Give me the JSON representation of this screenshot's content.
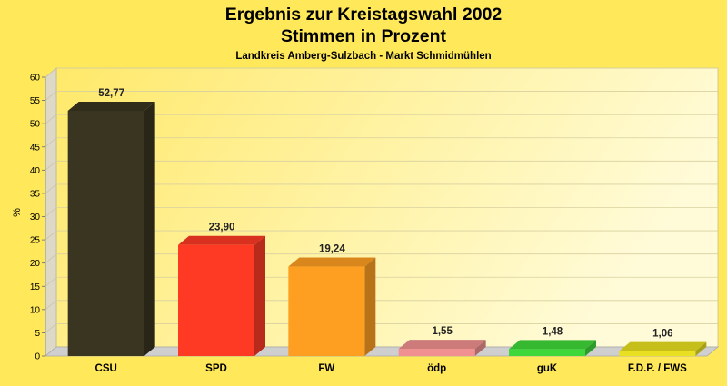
{
  "chart_data": {
    "type": "bar",
    "title": "Ergebnis zur Kreistagswahl 2002",
    "title_line2": "Stimmen in Prozent",
    "subtitle": "Landkreis Amberg-Sulzbach - Markt Schmidmühlen",
    "xlabel": "",
    "ylabel": "%",
    "ylim": [
      0,
      60
    ],
    "yticks": [
      0,
      5,
      10,
      15,
      20,
      25,
      30,
      35,
      40,
      45,
      50,
      55,
      60
    ],
    "grid": true,
    "legend": "none",
    "categories": [
      "CSU",
      "SPD",
      "FW",
      "ödp",
      "guK",
      "F.D.P. / FWS"
    ],
    "values": [
      52.77,
      23.9,
      19.24,
      1.55,
      1.48,
      1.06
    ],
    "value_labels": [
      "52,77",
      "23,90",
      "19,24",
      "1,55",
      "1,48",
      "1,06"
    ],
    "colors": [
      "#3a3520",
      "#ff3a24",
      "#ff9f22",
      "#f09090",
      "#3fd83a",
      "#e8e020"
    ],
    "background_color": "#ffe95a"
  }
}
